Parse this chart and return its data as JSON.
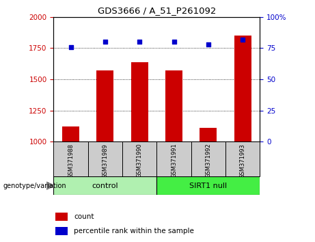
{
  "title": "GDS3666 / A_51_P261092",
  "samples": [
    "GSM371988",
    "GSM371989",
    "GSM371990",
    "GSM371991",
    "GSM371992",
    "GSM371993"
  ],
  "count_values": [
    1120,
    1570,
    1635,
    1570,
    1110,
    1850
  ],
  "percentile_values": [
    76,
    80,
    80,
    80,
    78,
    82
  ],
  "ylim_left": [
    1000,
    2000
  ],
  "ylim_right": [
    0,
    100
  ],
  "yticks_left": [
    1000,
    1250,
    1500,
    1750,
    2000
  ],
  "yticks_right": [
    0,
    25,
    50,
    75,
    100
  ],
  "bar_color": "#cc0000",
  "dot_color": "#0000cc",
  "group_colors": [
    "#b0f0b0",
    "#44ee44"
  ],
  "legend_count_label": "count",
  "legend_pct_label": "percentile rank within the sample",
  "left_tick_color": "#cc0000",
  "right_tick_color": "#0000cc"
}
